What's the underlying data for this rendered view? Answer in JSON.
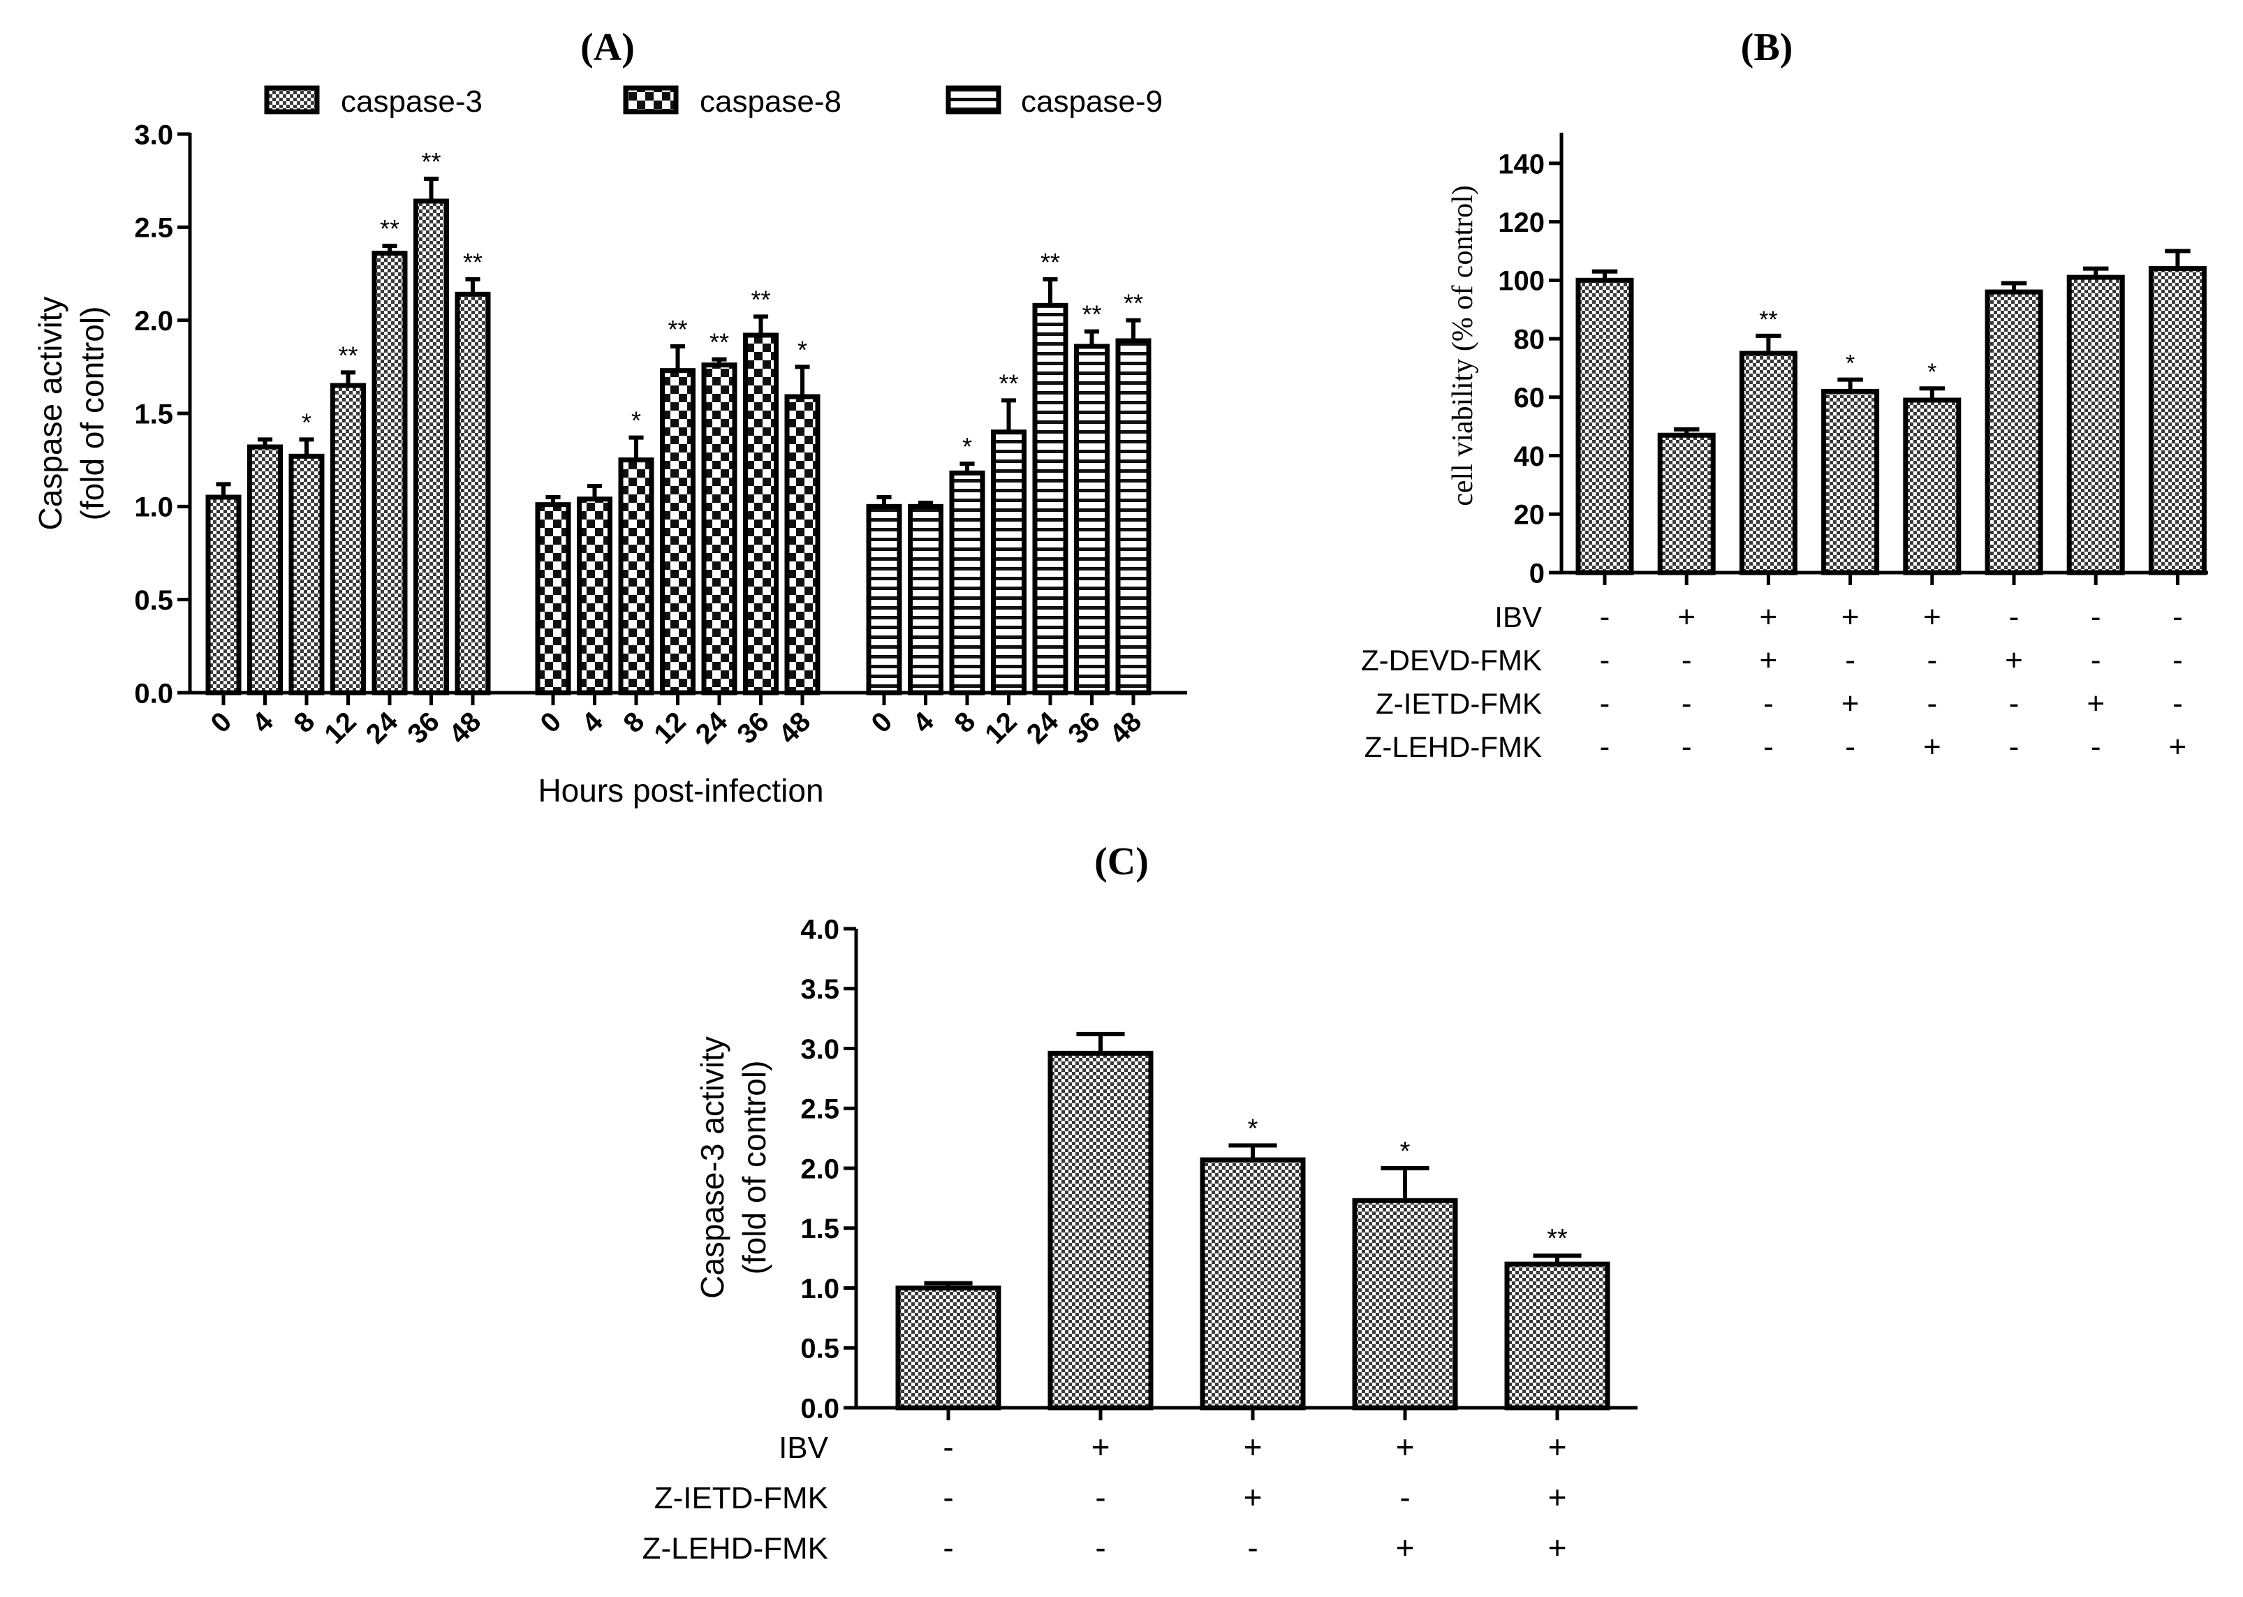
{
  "chart_data": [
    {
      "panel": "(A)",
      "type": "bar",
      "ylabel_line1": "Caspase activity",
      "ylabel_line2": "(fold of control)",
      "xlabel": "Hours post-infection",
      "ylim": [
        0,
        3.0
      ],
      "yticks": [
        "0.0",
        "0.5",
        "1.0",
        "1.5",
        "2.0",
        "2.5",
        "3.0"
      ],
      "legend_position": "top",
      "categories": [
        "0",
        "4",
        "8",
        "12",
        "24",
        "36",
        "48"
      ],
      "series": [
        {
          "name": "caspase-3",
          "pattern": "dots",
          "values": [
            1.05,
            1.32,
            1.27,
            1.65,
            2.36,
            2.64,
            2.14
          ],
          "errors": [
            0.07,
            0.04,
            0.09,
            0.07,
            0.04,
            0.12,
            0.08
          ],
          "sig": [
            "",
            "",
            "*",
            "**",
            "**",
            "**",
            "**"
          ]
        },
        {
          "name": "caspase-8",
          "pattern": "checker",
          "values": [
            1.01,
            1.04,
            1.25,
            1.73,
            1.76,
            1.92,
            1.59
          ],
          "errors": [
            0.04,
            0.07,
            0.12,
            0.13,
            0.03,
            0.1,
            0.16
          ],
          "sig": [
            "",
            "",
            "*",
            "**",
            "**",
            "**",
            "*"
          ]
        },
        {
          "name": "caspase-9",
          "pattern": "hlines",
          "values": [
            1.0,
            1.0,
            1.18,
            1.4,
            2.08,
            1.86,
            1.89
          ],
          "errors": [
            0.05,
            0.02,
            0.05,
            0.17,
            0.14,
            0.08,
            0.11
          ],
          "sig": [
            "",
            "",
            "*",
            "**",
            "**",
            "**",
            "**"
          ]
        }
      ]
    },
    {
      "panel": "(B)",
      "type": "bar",
      "ylabel": "cell viability (% of control)",
      "ylim": [
        0,
        150
      ],
      "yticks": [
        "0",
        "20",
        "40",
        "60",
        "80",
        "100",
        "120",
        "140"
      ],
      "values": [
        100,
        47,
        75,
        62,
        59,
        96,
        101,
        104
      ],
      "errors": [
        3,
        2,
        6,
        4,
        4,
        3,
        3,
        6
      ],
      "sig": [
        "",
        "",
        "**",
        "*",
        "*",
        "",
        "",
        ""
      ],
      "conditions": [
        {
          "label": "IBV",
          "marks": [
            "-",
            "+",
            "+",
            "+",
            "+",
            "-",
            "-",
            "-"
          ]
        },
        {
          "label": "Z-DEVD-FMK",
          "marks": [
            "-",
            "-",
            "+",
            "-",
            "-",
            "+",
            "-",
            "-"
          ]
        },
        {
          "label": "Z-IETD-FMK",
          "marks": [
            "-",
            "-",
            "-",
            "+",
            "-",
            "-",
            "+",
            "-"
          ]
        },
        {
          "label": "Z-LEHD-FMK",
          "marks": [
            "-",
            "-",
            "-",
            "-",
            "+",
            "-",
            "-",
            "+"
          ]
        }
      ]
    },
    {
      "panel": "(C)",
      "type": "bar",
      "ylabel_line1": "Caspase-3 activity",
      "ylabel_line2": "(fold of control)",
      "ylim": [
        0,
        4.0
      ],
      "yticks": [
        "0.0",
        "0.5",
        "1.0",
        "1.5",
        "2.0",
        "2.5",
        "3.0",
        "3.5",
        "4.0"
      ],
      "values": [
        1.0,
        2.96,
        2.07,
        1.73,
        1.2
      ],
      "errors": [
        0.04,
        0.16,
        0.12,
        0.27,
        0.07
      ],
      "sig": [
        "",
        "",
        "*",
        "*",
        "**"
      ],
      "conditions": [
        {
          "label": "IBV",
          "marks": [
            "-",
            "+",
            "+",
            "+",
            "+"
          ]
        },
        {
          "label": "Z-IETD-FMK",
          "marks": [
            "-",
            "-",
            "+",
            "-",
            "+"
          ]
        },
        {
          "label": "Z-LEHD-FMK",
          "marks": [
            "-",
            "-",
            "-",
            "+",
            "+"
          ]
        }
      ]
    }
  ]
}
